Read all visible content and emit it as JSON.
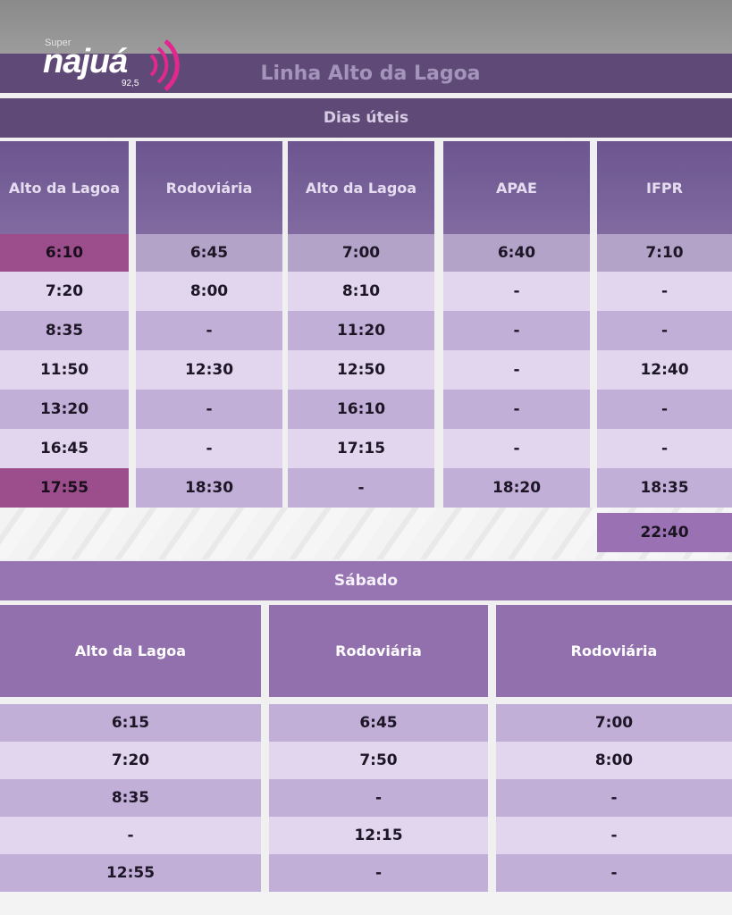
{
  "logo": {
    "super": "Super",
    "name": "najuá",
    "frequency": "92,5"
  },
  "title": "Linha Alto da Lagoa",
  "weekday": {
    "label": "Dias úteis",
    "columns": [
      "Alto da Lagoa",
      "Rodoviária",
      "Alto da Lagoa",
      "APAE",
      "IFPR"
    ],
    "rows": [
      [
        "6:10",
        "6:45",
        "7:00",
        "6:40",
        "7:10"
      ],
      [
        "7:20",
        "8:00",
        "8:10",
        "-",
        "-"
      ],
      [
        "8:35",
        "-",
        "11:20",
        "-",
        "-"
      ],
      [
        "11:50",
        "12:30",
        "12:50",
        "-",
        "12:40"
      ],
      [
        "13:20",
        "-",
        "16:10",
        "-",
        "-"
      ],
      [
        "16:45",
        "-",
        "17:15",
        "-",
        "-"
      ],
      [
        "17:55",
        "18:30",
        "-",
        "18:20",
        "18:35"
      ]
    ],
    "extra": "22:40"
  },
  "saturday": {
    "label": "Sábado",
    "columns": [
      "Alto da Lagoa",
      "Rodoviária",
      "Rodoviária"
    ],
    "rows": [
      [
        "6:15",
        "6:45",
        "7:00"
      ],
      [
        "7:20",
        "7:50",
        "8:00"
      ],
      [
        "8:35",
        "-",
        "-"
      ],
      [
        "-",
        "12:15",
        "-"
      ],
      [
        "12:55",
        "-",
        "-"
      ]
    ]
  },
  "colors": {
    "title_bar": "#5f4a77",
    "header": "#806aa0",
    "highlight": "#9c4e8c",
    "logo_waves": "#e2288e"
  }
}
